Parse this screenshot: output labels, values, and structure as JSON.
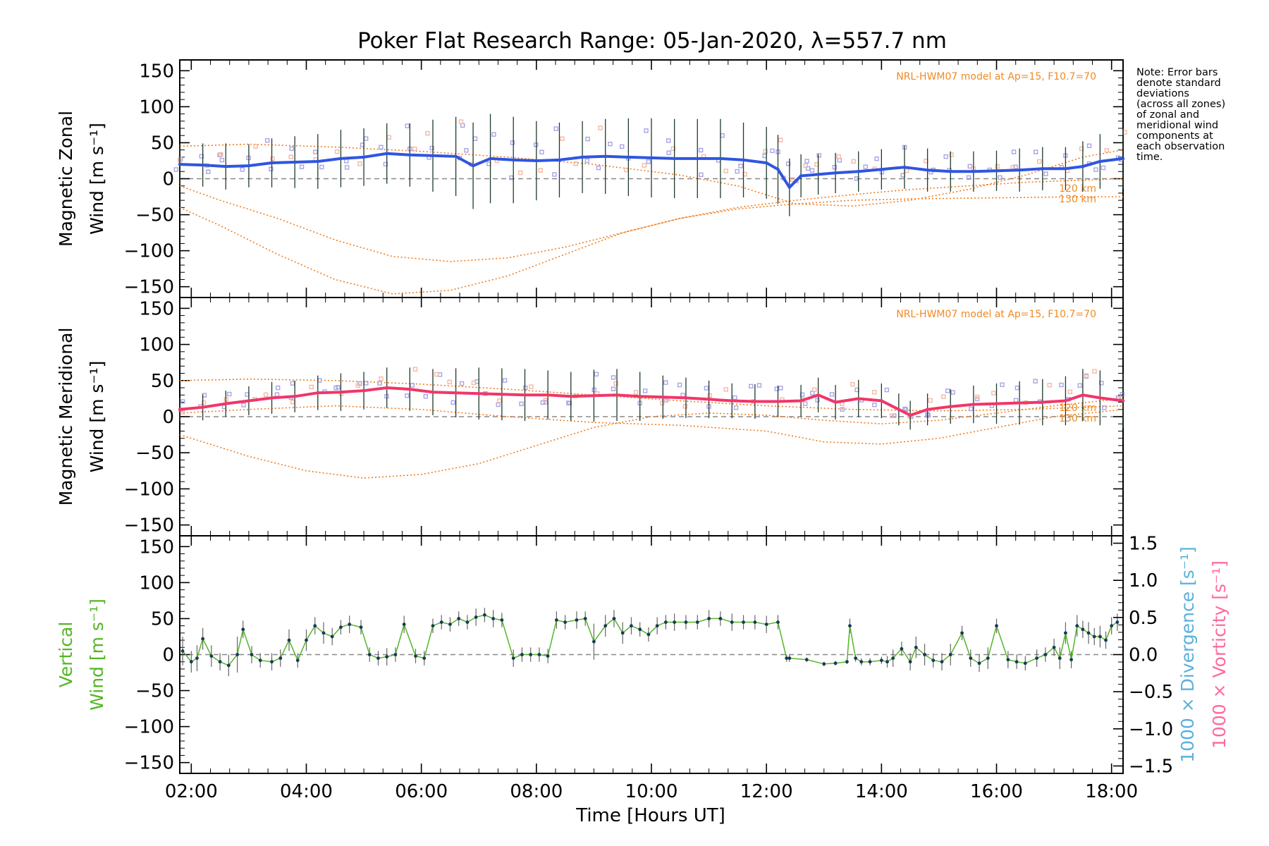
{
  "title": "Poker Flat Research Range: 05-Jan-2020, λ=557.7 nm",
  "note_lines": [
    "Note: Error bars",
    "denote standard",
    "deviations",
    "(across all zones)",
    "of zonal and",
    "meridional wind",
    "components at",
    "each observation",
    "time."
  ],
  "xlabel": "Time [Hours UT]",
  "colors": {
    "zonal": "#2f55e0",
    "zonal_alt": "#4aa7d8",
    "meridional": "#f0366a",
    "vertical": "#55b528",
    "model": "#f08a24",
    "divergence_label": "#5bb0dc",
    "vorticity_label": "#ff6b9a",
    "errbar": "#1f3b2c",
    "zone_points": "#a9a4e6"
  },
  "chart_data": [
    {
      "type": "line",
      "panel": "zonal",
      "ylabel_line1": "Magnetic Zonal",
      "ylabel_line2": "Wind [m s⁻¹]",
      "model_label": "NRL-HWM07 model at Ap=15, F10.7=70",
      "model_height_labels": [
        "120 km",
        "130 km"
      ],
      "xlim": [
        1.8,
        18.2
      ],
      "ylim": [
        -165,
        165
      ],
      "xticks": [
        "02:00",
        "04:00",
        "06:00",
        "08:00",
        "10:00",
        "12:00",
        "14:00",
        "16:00",
        "18:00"
      ],
      "yticks": [
        "150",
        "100",
        "50",
        "0",
        "−50",
        "−100",
        "−150"
      ],
      "ytick_values": [
        150,
        100,
        50,
        0,
        -50,
        -100,
        -150
      ],
      "series": [
        {
          "x": [
            1.8,
            2.2,
            2.6,
            3.0,
            3.4,
            3.8,
            4.2,
            4.6,
            5.0,
            5.4,
            5.8,
            6.2,
            6.6,
            6.9,
            7.2,
            7.6,
            8.0,
            8.4,
            8.8,
            9.2,
            9.6,
            10.0,
            10.4,
            10.8,
            11.2,
            11.6,
            12.0,
            12.2,
            12.4,
            12.6,
            12.9,
            13.2,
            13.6,
            14.0,
            14.4,
            14.8,
            15.2,
            15.6,
            16.0,
            16.4,
            16.8,
            17.2,
            17.5,
            17.8,
            18.2
          ],
          "y": [
            20,
            19,
            17,
            18,
            22,
            23,
            24,
            28,
            30,
            35,
            33,
            32,
            31,
            18,
            28,
            26,
            25,
            26,
            30,
            31,
            30,
            29,
            28,
            28,
            28,
            26,
            22,
            13,
            -12,
            4,
            6,
            8,
            10,
            13,
            16,
            12,
            10,
            10,
            11,
            12,
            14,
            14,
            17,
            24,
            28
          ],
          "err": [
            28,
            30,
            32,
            30,
            34,
            36,
            38,
            40,
            40,
            42,
            44,
            50,
            55,
            60,
            62,
            60,
            55,
            52,
            50,
            52,
            54,
            55,
            55,
            55,
            55,
            52,
            50,
            48,
            40,
            30,
            28,
            28,
            28,
            28,
            30,
            30,
            28,
            28,
            28,
            30,
            30,
            30,
            35,
            38,
            42
          ]
        }
      ],
      "model_curves": [
        {
          "x": [
            1.8,
            2.5,
            3.5,
            4.5,
            5.5,
            6.5,
            7.5,
            8.5,
            9.5,
            10.5,
            11.5,
            12.5,
            13.5,
            14.5,
            15.5,
            16.5,
            17.5,
            18.2
          ],
          "y": [
            -10,
            -30,
            -55,
            -85,
            -108,
            -115,
            -110,
            -95,
            -75,
            -55,
            -40,
            -30,
            -22,
            -15,
            -10,
            -5,
            -2,
            0
          ]
        },
        {
          "x": [
            1.8,
            2.5,
            3.5,
            4.5,
            5.5,
            6.5,
            7.5,
            8.5,
            9.5,
            10.5,
            11.5,
            12.5,
            13.5,
            14.5,
            15.5,
            16.5,
            17.5,
            18.2
          ],
          "y": [
            -40,
            -65,
            -105,
            -140,
            -160,
            -155,
            -135,
            -105,
            -75,
            -55,
            -42,
            -35,
            -30,
            -28,
            -27,
            -26,
            -25,
            -25
          ]
        },
        {
          "x": [
            1.8,
            3.0,
            4.5,
            6.0,
            7.5,
            9.0,
            10.5,
            11.5,
            12.5,
            13.5,
            14.5,
            15.5,
            16.5,
            17.5,
            18.2
          ],
          "y": [
            45,
            48,
            44,
            38,
            30,
            20,
            5,
            -10,
            -35,
            -38,
            -30,
            -15,
            5,
            30,
            40
          ]
        }
      ]
    },
    {
      "type": "line",
      "panel": "meridional",
      "ylabel_line1": "Magnetic Meridional",
      "ylabel_line2": "Wind [m s⁻¹]",
      "model_label": "NRL-HWM07 model at Ap=15, F10.7=70",
      "model_height_labels": [
        "120 km",
        "130 km"
      ],
      "xlim": [
        1.8,
        18.2
      ],
      "ylim": [
        -165,
        165
      ],
      "xticks": [
        "02:00",
        "04:00",
        "06:00",
        "08:00",
        "10:00",
        "12:00",
        "14:00",
        "16:00",
        "18:00"
      ],
      "yticks": [
        "150",
        "100",
        "50",
        "0",
        "−50",
        "−100",
        "−150"
      ],
      "ytick_values": [
        150,
        100,
        50,
        0,
        -50,
        -100,
        -150
      ],
      "series": [
        {
          "x": [
            1.8,
            2.2,
            2.6,
            3.0,
            3.4,
            3.8,
            4.2,
            4.6,
            5.0,
            5.4,
            5.8,
            6.2,
            6.6,
            7.0,
            7.4,
            7.8,
            8.2,
            8.6,
            9.0,
            9.4,
            9.8,
            10.2,
            10.6,
            11.0,
            11.4,
            11.8,
            12.2,
            12.6,
            12.9,
            13.2,
            13.6,
            14.0,
            14.3,
            14.5,
            14.8,
            15.2,
            15.6,
            16.0,
            16.4,
            16.8,
            17.2,
            17.5,
            17.8,
            18.2
          ],
          "y": [
            10,
            13,
            18,
            22,
            26,
            28,
            33,
            34,
            36,
            40,
            38,
            34,
            33,
            32,
            31,
            30,
            30,
            28,
            29,
            30,
            28,
            27,
            26,
            24,
            22,
            21,
            21,
            22,
            30,
            20,
            25,
            22,
            10,
            2,
            10,
            14,
            17,
            18,
            19,
            20,
            22,
            30,
            26,
            22
          ],
          "err": [
            16,
            18,
            18,
            20,
            22,
            22,
            24,
            26,
            26,
            28,
            30,
            32,
            34,
            36,
            36,
            36,
            34,
            34,
            36,
            36,
            34,
            30,
            28,
            26,
            24,
            24,
            22,
            22,
            24,
            24,
            26,
            24,
            22,
            20,
            22,
            24,
            26,
            28,
            30,
            32,
            34,
            36,
            38,
            38
          ]
        }
      ],
      "model_curves": [
        {
          "x": [
            1.8,
            3.0,
            4.0,
            5.0,
            6.0,
            7.0,
            8.0,
            9.0,
            10.0,
            11.0,
            12.0,
            13.0,
            14.0,
            15.0,
            16.0,
            17.0,
            18.2
          ],
          "y": [
            -25,
            -55,
            -75,
            -85,
            -80,
            -65,
            -40,
            -15,
            0,
            5,
            2,
            -5,
            -10,
            -5,
            5,
            15,
            25
          ]
        },
        {
          "x": [
            1.8,
            3.0,
            4.5,
            6.0,
            7.5,
            9.0,
            10.5,
            12.0,
            13.0,
            14.0,
            15.0,
            16.0,
            17.0,
            18.2
          ],
          "y": [
            5,
            10,
            15,
            10,
            0,
            -8,
            -12,
            -20,
            -35,
            -38,
            -30,
            -15,
            0,
            10
          ]
        },
        {
          "x": [
            1.8,
            3.0,
            4.5,
            6.0,
            7.5,
            9.0,
            10.5,
            12.0,
            13.5,
            15.0,
            16.5,
            18.2
          ],
          "y": [
            50,
            52,
            50,
            45,
            38,
            30,
            22,
            15,
            10,
            8,
            10,
            15
          ]
        }
      ]
    },
    {
      "type": "line",
      "panel": "vertical",
      "ylabel_line1": "Vertical",
      "ylabel_line2": "Wind [m s⁻¹]",
      "right_label_1": "1000 × Divergence [s⁻¹]",
      "right_label_2": "1000 × Vorticity [s⁻¹]",
      "xlim": [
        1.8,
        18.2
      ],
      "ylim": [
        -165,
        165
      ],
      "y2lim": [
        -1.6,
        1.6
      ],
      "xticks": [
        "02:00",
        "04:00",
        "06:00",
        "08:00",
        "10:00",
        "12:00",
        "14:00",
        "16:00",
        "18:00"
      ],
      "yticks": [
        "150",
        "100",
        "50",
        "0",
        "−50",
        "−100",
        "−150"
      ],
      "ytick_values": [
        150,
        100,
        50,
        0,
        -50,
        -100,
        -150
      ],
      "y2ticks": [
        "1.5",
        "1.0",
        "0.5",
        "0.0",
        "−0.5",
        "−1.0",
        "−1.5"
      ],
      "y2tick_values": [
        1.5,
        1.0,
        0.5,
        0.0,
        -0.5,
        -1.0,
        -1.5
      ],
      "series": [
        {
          "name": "",
          "x": [
            1.85,
            2.0,
            2.1,
            2.2,
            2.35,
            2.5,
            2.65,
            2.8,
            2.9,
            3.05,
            3.2,
            3.4,
            3.55,
            3.7,
            3.85,
            4.0,
            4.15,
            4.3,
            4.45,
            4.6,
            4.75,
            4.95,
            5.1,
            5.25,
            5.4,
            5.55,
            5.7,
            5.9,
            6.05,
            6.2,
            6.35,
            6.5,
            6.65,
            6.8,
            6.95,
            7.1,
            7.25,
            7.4,
            7.6,
            7.75,
            7.9,
            8.05,
            8.2,
            8.35,
            8.5,
            8.7,
            8.85,
            9.0,
            9.2,
            9.35,
            9.5,
            9.65,
            9.8,
            9.95,
            10.1,
            10.25,
            10.4,
            10.6,
            10.8,
            11.0,
            11.2,
            11.4,
            11.6,
            11.8,
            12.0,
            12.2,
            12.35,
            12.4,
            12.7,
            13.0,
            13.2,
            13.4,
            13.45,
            13.55,
            13.65,
            13.8,
            14.0,
            14.1,
            14.2,
            14.35,
            14.5,
            14.6,
            14.75,
            14.9,
            15.05,
            15.2,
            15.4,
            15.55,
            15.7,
            15.85,
            16.0,
            16.2,
            16.35,
            16.5,
            16.7,
            16.85,
            17.0,
            17.1,
            17.2,
            17.3,
            17.4,
            17.5,
            17.6,
            17.7,
            17.8,
            17.9,
            18.0,
            18.1
          ],
          "y": [
            5,
            -10,
            -5,
            22,
            -2,
            -10,
            -15,
            0,
            35,
            0,
            -8,
            -10,
            -5,
            20,
            -8,
            20,
            40,
            30,
            25,
            38,
            42,
            38,
            0,
            -5,
            -3,
            0,
            42,
            -2,
            -5,
            40,
            45,
            42,
            50,
            45,
            52,
            55,
            50,
            48,
            -5,
            0,
            0,
            0,
            -2,
            48,
            45,
            48,
            50,
            18,
            40,
            50,
            30,
            40,
            35,
            28,
            40,
            45,
            45,
            45,
            45,
            50,
            50,
            45,
            45,
            45,
            42,
            45,
            -5,
            -5,
            -7,
            -13,
            -12,
            -10,
            40,
            -5,
            -10,
            -10,
            -8,
            -10,
            -5,
            8,
            -10,
            10,
            0,
            -8,
            -10,
            0,
            30,
            -5,
            -12,
            -5,
            40,
            -7,
            -10,
            -12,
            -5,
            0,
            10,
            -5,
            30,
            -7,
            40,
            35,
            30,
            25,
            25,
            20,
            40,
            45
          ],
          "err": [
            20,
            15,
            18,
            15,
            15,
            12,
            15,
            25,
            12,
            12,
            10,
            12,
            12,
            15,
            10,
            15,
            12,
            15,
            12,
            10,
            12,
            10,
            10,
            10,
            12,
            10,
            12,
            10,
            10,
            10,
            10,
            10,
            10,
            10,
            12,
            10,
            12,
            10,
            12,
            10,
            10,
            10,
            10,
            12,
            10,
            12,
            10,
            25,
            15,
            12,
            15,
            12,
            10,
            10,
            12,
            10,
            12,
            10,
            10,
            12,
            10,
            12,
            10,
            10,
            12,
            10,
            5,
            5,
            3,
            3,
            3,
            3,
            10,
            5,
            5,
            5,
            5,
            8,
            12,
            10,
            12,
            15,
            15,
            10,
            12,
            15,
            10,
            12,
            12,
            15,
            10,
            12,
            10,
            10,
            12,
            10,
            12,
            15,
            15,
            12,
            15,
            12,
            15,
            12,
            15,
            12,
            12,
            12
          ]
        }
      ]
    }
  ]
}
